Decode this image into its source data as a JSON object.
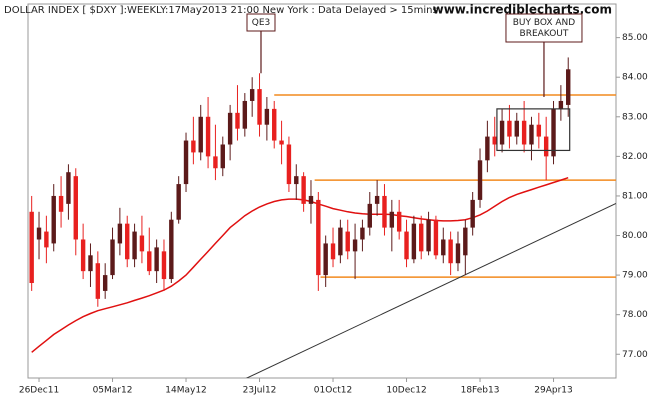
{
  "chart_data": {
    "type": "candlestick",
    "title": "DOLLAR INDEX [ $DXY ]:WEEKLY:17May2013 21:00 New York : Data Delayed > 15mins",
    "watermark": "www.incrediblecharts.com",
    "categories": [
      null,
      "26Dec11",
      null,
      null,
      null,
      null,
      null,
      null,
      null,
      null,
      null,
      "05Mar12",
      null,
      null,
      null,
      null,
      null,
      null,
      null,
      null,
      null,
      "14May12",
      null,
      null,
      null,
      null,
      null,
      null,
      null,
      null,
      null,
      "23Jul12",
      null,
      null,
      null,
      null,
      null,
      null,
      null,
      null,
      null,
      "01Oct12",
      null,
      null,
      null,
      null,
      null,
      null,
      null,
      null,
      null,
      "10Dec12",
      null,
      null,
      null,
      null,
      null,
      null,
      null,
      null,
      null,
      "18Feb13",
      null,
      null,
      null,
      null,
      null,
      null,
      null,
      null,
      null,
      "29Apr13",
      null,
      null
    ],
    "open": [
      80.6,
      79.9,
      80.1,
      79.8,
      81.0,
      80.8,
      81.5,
      79.9,
      79.1,
      79.3,
      78.6,
      79.0,
      79.8,
      80.3,
      79.4,
      80.0,
      79.6,
      79.1,
      79.6,
      78.9,
      80.4,
      81.3,
      82.4,
      82.1,
      83.0,
      82.0,
      81.7,
      82.3,
      83.1,
      82.7,
      83.4,
      83.7,
      82.8,
      83.2,
      82.4,
      82.3,
      81.3,
      81.5,
      80.8,
      80.9,
      79.0,
      79.8,
      79.5,
      80.1,
      79.6,
      79.9,
      80.2,
      80.8,
      81.0,
      80.2,
      80.6,
      80.1,
      79.4,
      80.3,
      79.6,
      80.4,
      79.5,
      79.9,
      79.3,
      79.5,
      80.2,
      80.9,
      81.9,
      82.5,
      82.3,
      82.9,
      82.5,
      82.9,
      82.3,
      82.8,
      82.5,
      82.0,
      83.2,
      83.3
    ],
    "high": [
      81.0,
      80.6,
      80.5,
      81.3,
      81.5,
      81.8,
      81.7,
      80.3,
      79.8,
      79.6,
      79.3,
      80.2,
      80.7,
      80.5,
      80.3,
      80.5,
      80.2,
      79.9,
      79.9,
      80.6,
      81.5,
      82.6,
      83.0,
      83.3,
      83.5,
      82.8,
      82.5,
      83.3,
      83.8,
      83.6,
      84.0,
      84.1,
      83.5,
      83.4,
      82.9,
      82.5,
      81.8,
      81.6,
      81.4,
      81.1,
      80.0,
      80.2,
      80.4,
      80.4,
      80.3,
      80.4,
      81.1,
      81.4,
      81.3,
      80.9,
      80.9,
      80.4,
      80.5,
      80.5,
      80.6,
      80.5,
      80.2,
      80.1,
      80.1,
      80.4,
      81.1,
      82.2,
      82.9,
      83.0,
      83.2,
      83.3,
      83.1,
      83.4,
      83.0,
      83.1,
      83.0,
      83.4,
      83.8,
      84.5
    ],
    "low": [
      78.6,
      79.4,
      79.3,
      79.6,
      80.2,
      80.4,
      79.5,
      78.9,
      78.7,
      78.2,
      78.4,
      78.9,
      79.5,
      79.2,
      79.2,
      79.3,
      79.0,
      78.8,
      78.6,
      78.8,
      80.3,
      81.1,
      81.8,
      81.9,
      81.7,
      81.4,
      81.5,
      81.9,
      82.4,
      82.5,
      83.0,
      82.5,
      82.4,
      82.2,
      81.8,
      81.1,
      80.9,
      80.6,
      80.3,
      78.6,
      78.7,
      79.2,
      79.3,
      79.4,
      78.9,
      79.6,
      80.0,
      80.5,
      80.0,
      79.6,
      79.9,
      79.2,
      79.3,
      79.4,
      79.5,
      79.4,
      79.3,
      79.0,
      79.1,
      79.0,
      80.0,
      80.7,
      81.6,
      82.0,
      82.1,
      82.2,
      82.3,
      82.1,
      81.9,
      82.2,
      81.4,
      81.8,
      82.9,
      83.0
    ],
    "close": [
      78.8,
      80.2,
      79.7,
      81.0,
      80.6,
      81.6,
      79.9,
      79.1,
      79.5,
      78.4,
      79.0,
      79.9,
      80.3,
      79.4,
      80.1,
      79.6,
      79.1,
      79.7,
      78.9,
      80.4,
      81.3,
      82.4,
      82.1,
      83.0,
      82.0,
      81.7,
      82.3,
      83.1,
      82.7,
      83.4,
      83.7,
      82.8,
      83.2,
      82.4,
      82.3,
      81.3,
      81.5,
      80.8,
      81.0,
      79.0,
      79.8,
      79.4,
      80.2,
      79.6,
      79.9,
      80.2,
      80.8,
      81.0,
      80.2,
      80.6,
      80.1,
      79.4,
      80.3,
      79.6,
      80.4,
      79.5,
      79.9,
      79.3,
      79.8,
      80.2,
      80.9,
      81.9,
      82.5,
      82.3,
      82.9,
      82.5,
      82.9,
      82.3,
      82.8,
      82.5,
      82.0,
      83.2,
      83.4,
      84.2
    ],
    "up_color": "#5c1a1a",
    "down_color": "#e8201f",
    "overlays": [
      {
        "color": "#e01010",
        "values": [
          77.05,
          77.2,
          77.35,
          77.5,
          77.62,
          77.74,
          77.85,
          77.95,
          78.03,
          78.1,
          78.15,
          78.2,
          78.25,
          78.3,
          78.36,
          78.42,
          78.48,
          78.55,
          78.62,
          78.72,
          78.85,
          79.0,
          79.2,
          79.4,
          79.6,
          79.8,
          80.0,
          80.2,
          80.35,
          80.5,
          80.62,
          80.72,
          80.8,
          80.86,
          80.9,
          80.92,
          80.92,
          80.9,
          80.86,
          80.8,
          80.74,
          80.68,
          80.64,
          80.6,
          80.57,
          80.55,
          80.54,
          80.54,
          80.54,
          80.53,
          80.5,
          80.48,
          80.45,
          80.42,
          80.4,
          80.38,
          80.37,
          80.37,
          80.38,
          80.4,
          80.45,
          80.52,
          80.62,
          80.74,
          80.86,
          80.96,
          81.04,
          81.1,
          81.16,
          81.22,
          81.28,
          81.34,
          81.4,
          81.46
        ]
      }
    ],
    "levels": [
      {
        "value": 83.55,
        "from": 33,
        "color": "#f28a1e"
      },
      {
        "value": 81.4,
        "from": 38.5,
        "color": "#f28a1e"
      },
      {
        "value": 78.95,
        "from": 39.3,
        "color": "#f28a1e"
      }
    ],
    "trendline": {
      "x": [
        24.5,
        79.5
      ],
      "y": [
        75.98,
        80.81
      ],
      "color": "#333333"
    },
    "box": {
      "from": 63.3,
      "to": 73.2,
      "top": 83.2,
      "bottom": 82.15
    },
    "annotations": [
      {
        "lines": [
          "QE3"
        ],
        "index": 31.2,
        "value": 84.1
      },
      {
        "lines": [
          "BUY BOX AND",
          "BREAKOUT"
        ],
        "index": 69.7,
        "value": 83.5
      }
    ],
    "xlim": [
      -0.5,
      79.5
    ],
    "ylim": [
      76.4,
      85.85
    ],
    "yticks": [
      {
        "value": 77,
        "label": "77.00"
      },
      {
        "value": 78,
        "label": "78.00"
      },
      {
        "value": 79,
        "label": "79.00"
      },
      {
        "value": 80,
        "label": "80.00"
      },
      {
        "value": 81,
        "label": "81.00"
      },
      {
        "value": 82,
        "label": "82.00"
      },
      {
        "value": 83,
        "label": "83.00"
      },
      {
        "value": 84,
        "label": "84.00"
      },
      {
        "value": 85,
        "label": "85.00"
      }
    ]
  }
}
